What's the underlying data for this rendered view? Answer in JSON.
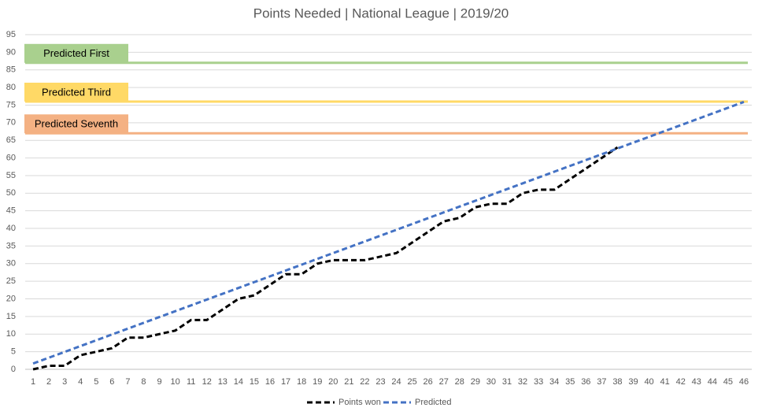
{
  "chart_data": {
    "type": "line",
    "title": "Points Needed | National League | 2019/20",
    "categories": [
      "1",
      "2",
      "3",
      "4",
      "5",
      "6",
      "7",
      "8",
      "9",
      "10",
      "11",
      "12",
      "13",
      "14",
      "15",
      "16",
      "17",
      "18",
      "19",
      "20",
      "21",
      "22",
      "23",
      "24",
      "25",
      "26",
      "27",
      "28",
      "29",
      "30",
      "31",
      "32",
      "33",
      "34",
      "35",
      "36",
      "37",
      "38",
      "39",
      "40",
      "41",
      "42",
      "43",
      "44",
      "45",
      "46"
    ],
    "series": [
      {
        "name": "Points won",
        "color": "#000000",
        "values": [
          0,
          1,
          1,
          4,
          5,
          6,
          9,
          9,
          10,
          11,
          14,
          14,
          17,
          20,
          21,
          24,
          27,
          27,
          30,
          31,
          31,
          31,
          32,
          33,
          36,
          39,
          42,
          43,
          46,
          47,
          47,
          50,
          51,
          51,
          54,
          57,
          60,
          63,
          null,
          null,
          null,
          null,
          null,
          null,
          null,
          null
        ]
      },
      {
        "name": "Predicted",
        "color": "#4472c4",
        "values": [
          1.65,
          3.3,
          4.95,
          6.6,
          8.25,
          9.9,
          11.55,
          13.2,
          14.85,
          16.5,
          18.15,
          19.8,
          21.45,
          23.1,
          24.75,
          26.4,
          28.05,
          29.7,
          31.35,
          33,
          34.65,
          36.3,
          37.95,
          39.6,
          41.25,
          42.9,
          44.55,
          46.2,
          47.85,
          49.5,
          51.15,
          52.8,
          54.45,
          56.1,
          57.75,
          59.4,
          61.05,
          62.7,
          64.35,
          66,
          67.65,
          69.3,
          70.95,
          72.6,
          74.25,
          75.9
        ]
      }
    ],
    "annotations": [
      {
        "text": "Predicted First",
        "value": 87,
        "color": "#a9d08e"
      },
      {
        "text": "Predicted Third",
        "value": 76,
        "color": "#ffd966"
      },
      {
        "text": "Predicted Seventh",
        "value": 67,
        "color": "#f4b183"
      }
    ],
    "ylim": [
      0,
      95
    ],
    "yticks": [
      0,
      5,
      10,
      15,
      20,
      25,
      30,
      35,
      40,
      45,
      50,
      55,
      60,
      65,
      70,
      75,
      80,
      85,
      90,
      95
    ],
    "grid": true,
    "legend": "bottom"
  }
}
